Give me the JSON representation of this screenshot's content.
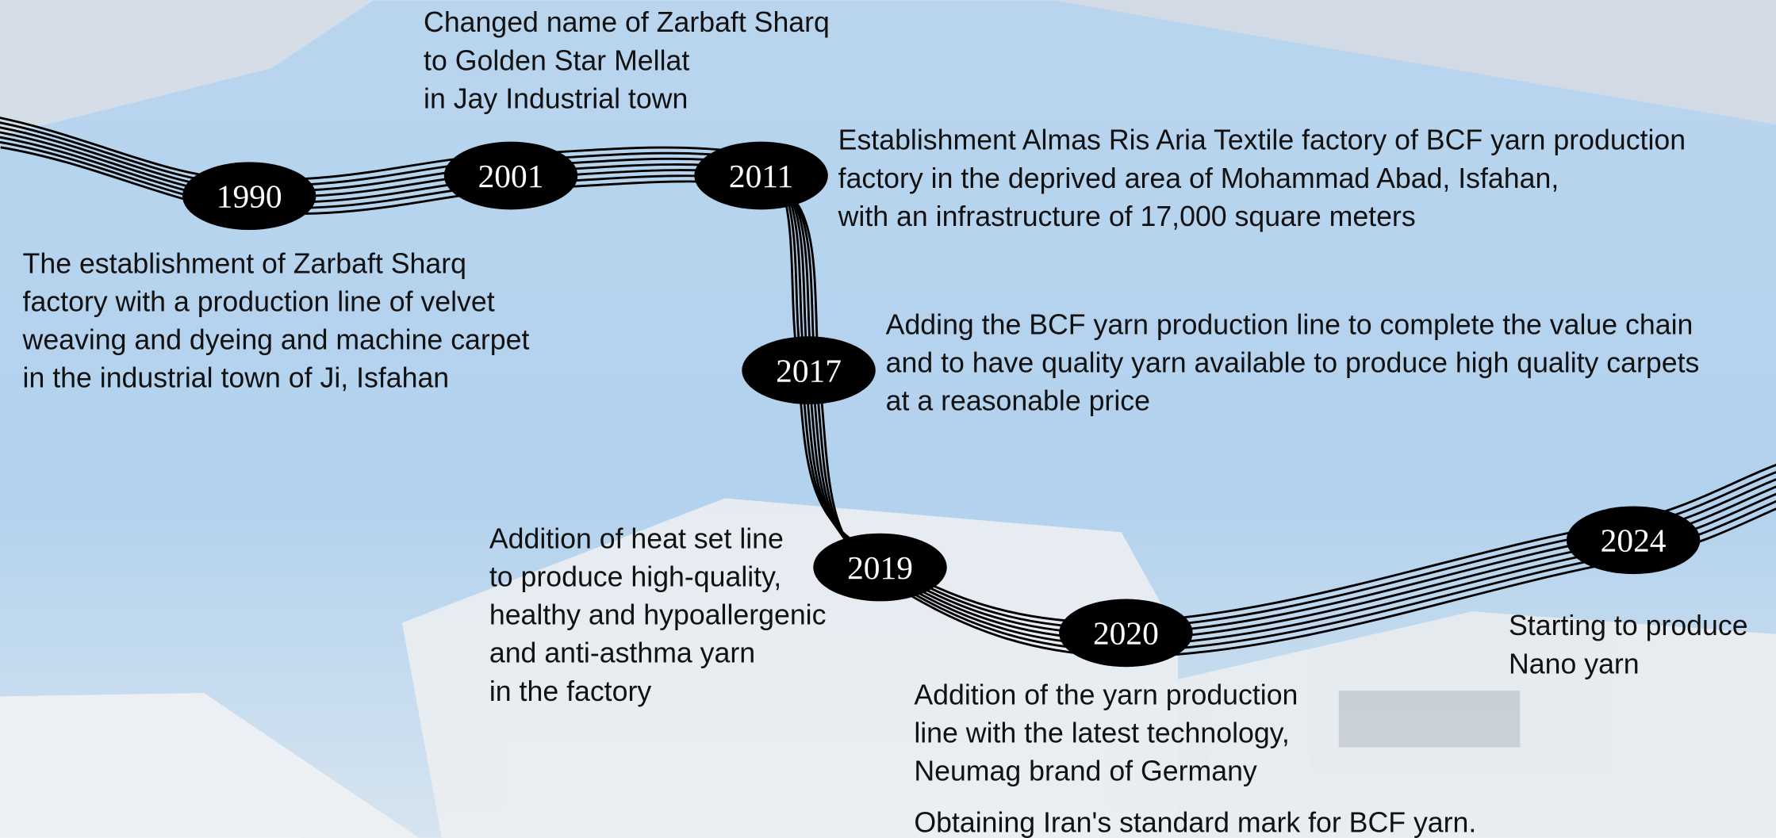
{
  "events": [
    {
      "year": "1990",
      "lines": [
        "The establishment of Zarbaft Sharq",
        "factory with a production line of velvet",
        "weaving and dyeing and machine carpet",
        "in the industrial town of Ji, Isfahan"
      ]
    },
    {
      "year": "2001",
      "lines": [
        "Changed name of Zarbaft Sharq",
        "to Golden Star  Mellat",
        "in Jay Industrial  town"
      ]
    },
    {
      "year": "2011",
      "lines": [
        "Establishment Almas Ris Aria Textile factory of BCF yarn production",
        "factory in the deprived area of Mohammad Abad, Isfahan,",
        "with an infrastructure of 17,000 square meters"
      ]
    },
    {
      "year": "2017",
      "lines": [
        "Adding the BCF yarn production line to complete the value chain",
        "and to have quality yarn available to produce high quality carpets",
        "at a reasonable price"
      ]
    },
    {
      "year": "2019",
      "lines": [
        "Addition of heat set line",
        "to produce high-quality,",
        "healthy and hypoallergenic",
        "and anti-asthma yarn",
        "in the factory"
      ]
    },
    {
      "year": "2020",
      "lines": [
        "Addition of the yarn production",
        "line with the latest technology,",
        "Neumag brand of Germany"
      ],
      "note": "Obtaining Iran's standard mark for BCF yarn."
    },
    {
      "year": "2024",
      "lines": [
        "Starting to produce",
        "Nano yarn"
      ]
    }
  ]
}
